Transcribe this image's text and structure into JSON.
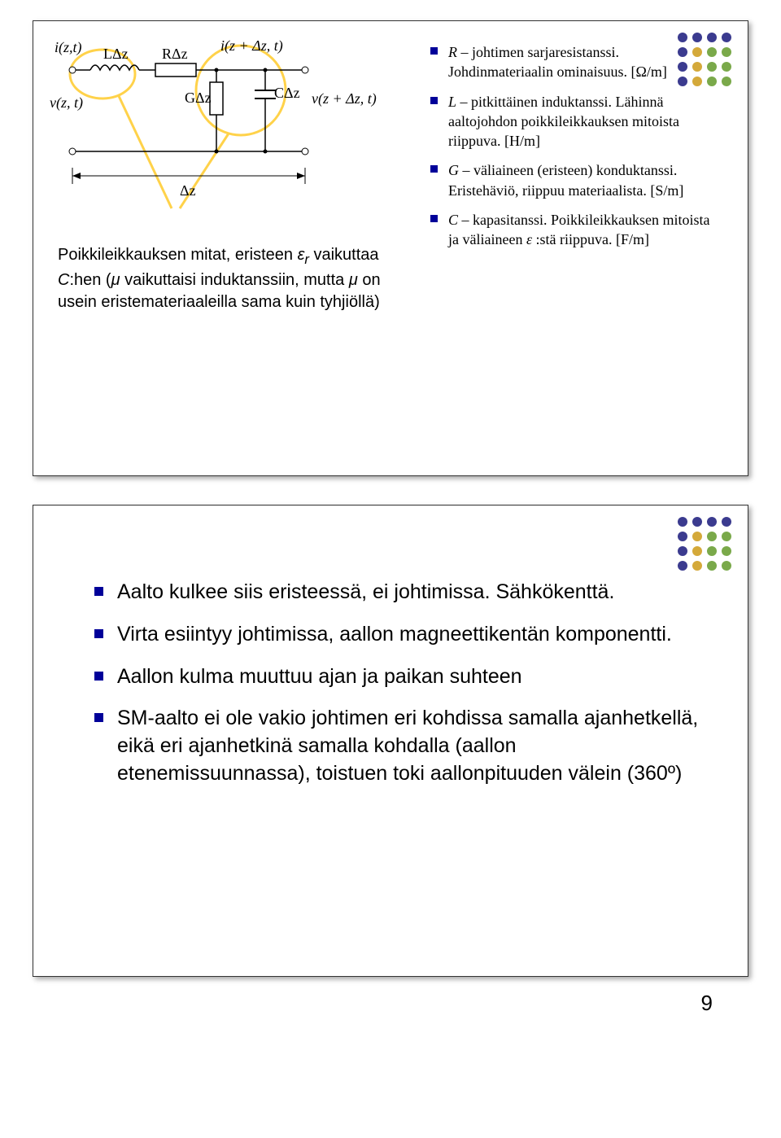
{
  "dots": {
    "colors": [
      "#3b3b8f",
      "#3b3b8f",
      "#3b3b8f",
      "#3b3b8f",
      "#3b3b8f",
      "#d4a93a",
      "#7aa94a",
      "#7aa94a",
      "#3b3b8f",
      "#d4a93a",
      "#7aa94a",
      "#7aa94a",
      "#3b3b8f",
      "#d4a93a",
      "#7aa94a",
      "#7aa94a"
    ]
  },
  "circuit": {
    "labels": {
      "i_left": "i(z,t)",
      "i_right": "i(z + Δz, t)",
      "v_left": "v(z, t)",
      "v_right": "v(z + Δz, t)",
      "L": "LΔz",
      "R": "RΔz",
      "G": "GΔz",
      "C": "CΔz",
      "dz": "Δz"
    },
    "stroke": "#000000",
    "highlight_stroke": "#ffd24a",
    "highlight_width": 3
  },
  "caption_html": "Poikkileikkauksen mitat, eristeen <i>ε<sub>r</sub></i> vaikuttaa <i>C</i>:hen (<i>μ</i> vaikuttaisi induktanssiin, mutta <i>μ</i> on usein eristemateriaaleilla sama kuin tyhjiöllä)",
  "params": [
    {
      "sym": "R",
      "text": " – johtimen sarjaresistanssi. Johdinmateriaalin ominaisuus. [Ω/m]"
    },
    {
      "sym": "L",
      "text": " – pitkittäinen induktanssi. Lähinnä aaltojohdon poikkileikkauksen mitoista riippuva. [H/m]"
    },
    {
      "sym": "G",
      "text": " – väliaineen (eristeen) konduktanssi. Eristehäviö, riippuu materiaalista. [S/m]"
    },
    {
      "sym": "C",
      "text": " – kapasitanssi. Poikkileikkauksen mitoista ja väliaineen <i>ε</i> :stä riippuva. [F/m]"
    }
  ],
  "slide2_bullets": [
    "Aalto kulkee siis eristeessä, ei johtimissa. Sähkökenttä.",
    "Virta esiintyy johtimissa, aallon magneettikentän komponentti.",
    "Aallon kulma muuttuu ajan ja paikan suhteen",
    "SM-aalto ei ole vakio johtimen eri kohdissa samalla ajanhetkellä, eikä eri ajanhetkinä samalla kohdalla (aallon etenemissuunnassa), toistuen toki aallonpituuden välein (360º)"
  ],
  "page_number": "9"
}
